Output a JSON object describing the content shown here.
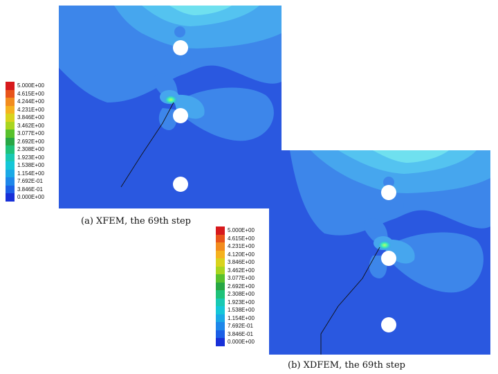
{
  "figures": [
    {
      "id": "a",
      "caption": "(a) XFEM, the 69th step",
      "legend_labels": [
        "5.000E+00",
        "4.615E+00",
        "4.244E+00",
        "4.231E+00",
        "3.846E+00",
        "3.462E+00",
        "3.077E+00",
        "2.692E+00",
        "2.308E+00",
        "1.923E+00",
        "1.538E+00",
        "1.154E+00",
        "7.692E-01",
        "3.846E-01",
        "0.000E+00"
      ]
    },
    {
      "id": "b",
      "caption": "(b) XDFEM, the 69th step",
      "legend_labels": [
        "5.000E+00",
        "4.615E+00",
        "4.231E+00",
        "4.120E+00",
        "3.846E+00",
        "3.462E+00",
        "3.077E+00",
        "2.692E+00",
        "2.308E+00",
        "1.923E+00",
        "1.538E+00",
        "1.154E+00",
        "7.692E-01",
        "3.846E-01",
        "0.000E+00"
      ]
    }
  ],
  "colorbar_colors": [
    "#d7191c",
    "#e8541a",
    "#f28c1e",
    "#f5b21f",
    "#d9d31d",
    "#a9d51f",
    "#58c12d",
    "#28a745",
    "#1fc27a",
    "#19c9b3",
    "#15c7d8",
    "#1aa9e6",
    "#1e87ea",
    "#1b5fe6",
    "#1830d8"
  ]
}
